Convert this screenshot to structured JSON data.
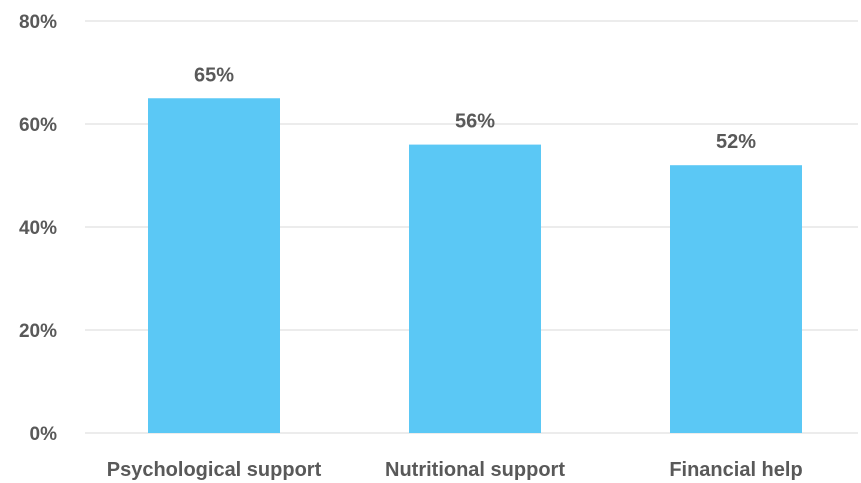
{
  "chart_data": {
    "type": "bar",
    "categories": [
      "Psychological support",
      "Nutritional support",
      "Financial help"
    ],
    "values": [
      65,
      56,
      52
    ],
    "data_labels": [
      "65%",
      "56%",
      "52%"
    ],
    "yticks": [
      {
        "value": 0,
        "label": "0%"
      },
      {
        "value": 20,
        "label": "20%"
      },
      {
        "value": 40,
        "label": "40%"
      },
      {
        "value": 60,
        "label": "60%"
      },
      {
        "value": 80,
        "label": "80%"
      }
    ],
    "ylim": [
      0,
      80
    ],
    "grid": true,
    "legend": "none",
    "colors": {
      "bar": "#5BC8F5",
      "grid": "#d9d9d9",
      "text": "#595959"
    }
  }
}
